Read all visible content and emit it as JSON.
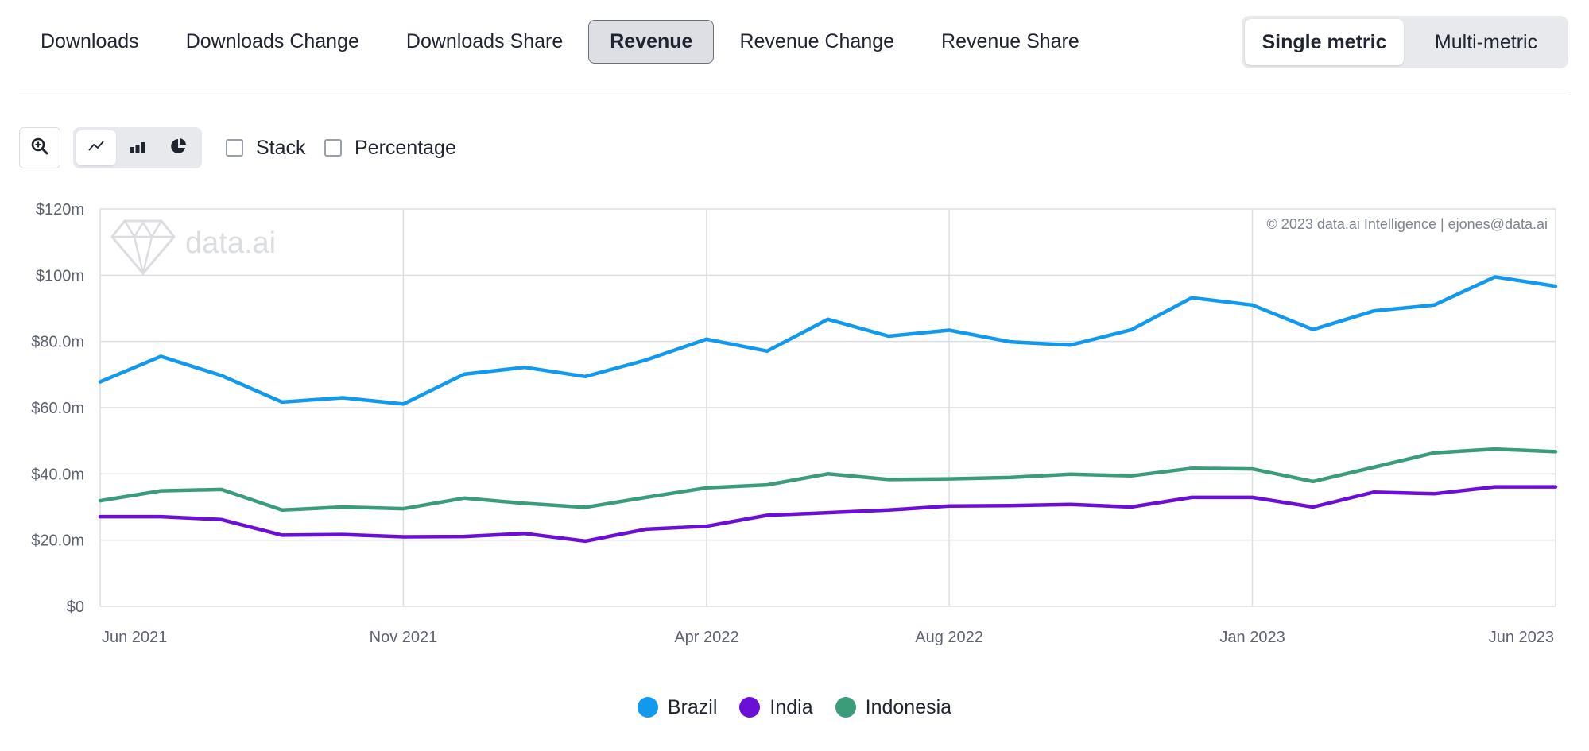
{
  "tabs": [
    {
      "label": "Downloads",
      "active": false
    },
    {
      "label": "Downloads Change",
      "active": false
    },
    {
      "label": "Downloads Share",
      "active": false
    },
    {
      "label": "Revenue",
      "active": true
    },
    {
      "label": "Revenue Change",
      "active": false
    },
    {
      "label": "Revenue Share",
      "active": false
    }
  ],
  "metric_toggle": {
    "single": "Single metric",
    "multi": "Multi-metric",
    "selected": "single"
  },
  "toolbar": {
    "zoom_icon": "zoom-in-icon",
    "view_modes": [
      "line-chart-icon",
      "bar-chart-icon",
      "pie-chart-icon"
    ],
    "active_view": "line-chart-icon",
    "stack_label": "Stack",
    "stack_checked": false,
    "percentage_label": "Percentage",
    "percentage_checked": false
  },
  "watermark": {
    "brand": "data.ai",
    "copyright": "© 2023 data.ai Intelligence | ejones@data.ai"
  },
  "chart_data": {
    "type": "line",
    "title": "",
    "xlabel": "",
    "ylabel": "",
    "ylim": [
      0,
      120
    ],
    "y_ticks": [
      "$0",
      "$20.0m",
      "$40.0m",
      "$60.0m",
      "$80.0m",
      "$100m",
      "$120m"
    ],
    "x_ticks": [
      {
        "label": "Jun 2021",
        "index": 0
      },
      {
        "label": "Nov 2021",
        "index": 5
      },
      {
        "label": "Apr 2022",
        "index": 10
      },
      {
        "label": "Aug 2022",
        "index": 14
      },
      {
        "label": "Jan 2023",
        "index": 19
      },
      {
        "label": "Jun 2023",
        "index": 24
      }
    ],
    "x": [
      "Jun 2021",
      "Jul 2021",
      "Aug 2021",
      "Sep 2021",
      "Oct 2021",
      "Nov 2021",
      "Dec 2021",
      "Jan 2022",
      "Feb 2022",
      "Mar 2022",
      "Apr 2022",
      "May 2022",
      "Jun 2022",
      "Jul 2022",
      "Aug 2022",
      "Sep 2022",
      "Oct 2022",
      "Nov 2022",
      "Dec 2022",
      "Jan 2023",
      "Feb 2023",
      "Mar 2023",
      "Apr 2023",
      "May 2023",
      "Jun 2023"
    ],
    "grid": true,
    "legend_position": "bottom-center",
    "series": [
      {
        "name": "Brazil",
        "color": "#1199ee",
        "values": [
          67.8,
          75.5,
          69.7,
          61.7,
          63.0,
          61.1,
          70.1,
          72.2,
          69.4,
          74.4,
          80.7,
          77.1,
          86.7,
          81.6,
          83.4,
          79.9,
          78.9,
          83.5,
          93.2,
          91.0,
          83.6,
          89.2,
          91.0,
          99.5,
          96.7
        ]
      },
      {
        "name": "India",
        "color": "#6b0fd6",
        "values": [
          27.1,
          27.1,
          26.2,
          21.5,
          21.7,
          21.0,
          21.1,
          22.0,
          19.7,
          23.3,
          24.2,
          27.5,
          28.3,
          29.1,
          30.3,
          30.4,
          30.8,
          30.0,
          32.9,
          32.9,
          30.0,
          34.5,
          34.0,
          36.1,
          36.1
        ]
      },
      {
        "name": "Indonesia",
        "color": "#3b9c7a",
        "values": [
          31.9,
          34.9,
          35.3,
          29.1,
          30.0,
          29.5,
          32.7,
          31.1,
          29.9,
          32.9,
          35.8,
          36.7,
          40.0,
          38.3,
          38.5,
          38.9,
          39.9,
          39.4,
          41.7,
          41.5,
          37.7,
          42.0,
          46.4,
          47.5,
          46.7
        ]
      }
    ]
  }
}
